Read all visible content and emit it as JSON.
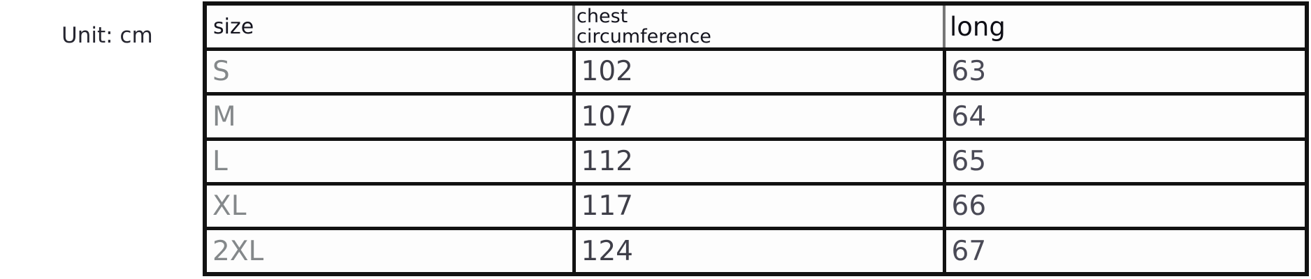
{
  "unit_label": "Unit: cm",
  "table": {
    "headers": {
      "size": "size",
      "chest": "chest\ncircumference",
      "long": "long"
    },
    "rows": [
      {
        "size": "S",
        "chest": "102",
        "long": "63"
      },
      {
        "size": "M",
        "chest": "107",
        "long": "64"
      },
      {
        "size": "L",
        "chest": "112",
        "long": "65"
      },
      {
        "size": "XL",
        "chest": "117",
        "long": "66"
      },
      {
        "size": "2XL",
        "chest": "124",
        "long": "67"
      }
    ]
  },
  "colors": {
    "table_border": "#121212",
    "header_divider": "#777777",
    "header_text": "#14141e",
    "size_text": "#84888a",
    "value_text": "#3e3e48",
    "unit_text": "#25252f"
  },
  "chart_data": {
    "type": "table",
    "unit": "cm",
    "columns": [
      "size",
      "chest circumference",
      "long"
    ],
    "rows": [
      [
        "S",
        102,
        63
      ],
      [
        "M",
        107,
        64
      ],
      [
        "L",
        112,
        65
      ],
      [
        "XL",
        117,
        66
      ],
      [
        "2XL",
        124,
        67
      ]
    ]
  }
}
